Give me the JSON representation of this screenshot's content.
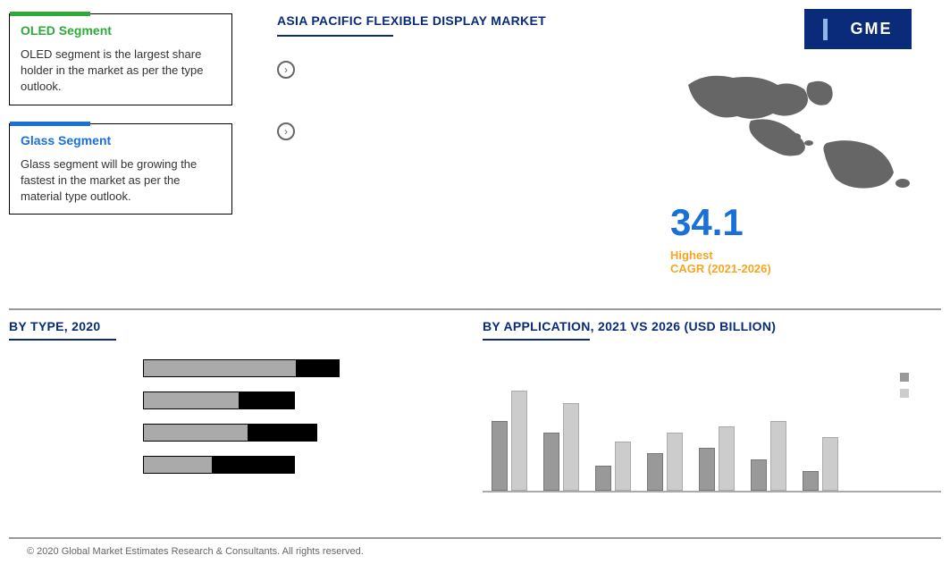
{
  "cards": {
    "oled": {
      "title": "OLED Segment",
      "body": "OLED segment is the largest share holder in the market as per the type outlook.",
      "bar_color": "#2eaa3b",
      "title_color": "#2eaa3b"
    },
    "glass": {
      "title": "Glass Segment",
      "body": "Glass segment will be growing the fastest in the market as per the material type outlook.",
      "bar_color": "#1a6fd8",
      "title_color": "#1a6fd8"
    }
  },
  "header": {
    "title": "ASIA PACIFIC FLEXIBLE DISPLAY MARKET",
    "title_color": "#0a2a7a",
    "underline_color": "#0a2a7a"
  },
  "logo": {
    "text": "GME",
    "bg_color": "#0a2a7a"
  },
  "cagr": {
    "value": "34.1",
    "value_color": "#1a6fd8",
    "label_top": "Highest",
    "label_bottom": "CAGR (2021-2026)",
    "label_color": "#f5a623"
  },
  "by_type": {
    "title": "BY TYPE, 2020",
    "bars": [
      {
        "fill_pct": 78,
        "total_width": 220
      },
      {
        "fill_pct": 63,
        "total_width": 170
      },
      {
        "fill_pct": 60,
        "total_width": 195
      },
      {
        "fill_pct": 45,
        "total_width": 170
      }
    ],
    "fill_color": "#aaaaaa",
    "bg_color": "#000000"
  },
  "by_application": {
    "title": "BY  APPLICATION,  2021 VS 2026 (USD BILLION)",
    "groups": [
      {
        "a": 78,
        "b": 112
      },
      {
        "a": 65,
        "b": 98
      },
      {
        "a": 28,
        "b": 55
      },
      {
        "a": 42,
        "b": 65
      },
      {
        "a": 48,
        "b": 72
      },
      {
        "a": 35,
        "b": 78
      },
      {
        "a": 22,
        "b": 60
      }
    ],
    "color_a": "#999999",
    "color_b": "#cccccc",
    "axis_color": "#aaaaaa"
  },
  "copyright": "© 2020 Global Market Estimates Research & Consultants. All rights reserved."
}
